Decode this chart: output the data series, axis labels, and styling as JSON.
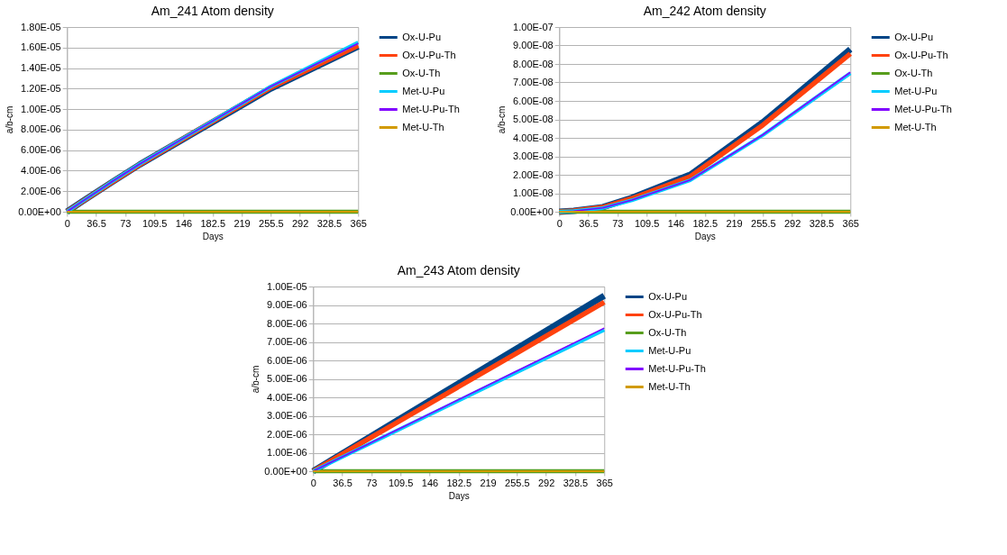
{
  "chart_data": [
    {
      "type": "line",
      "title": "Am_241 Atom density",
      "xlabel": "Days",
      "ylabel": "a/b-cm",
      "x": [
        0,
        18.25,
        54.75,
        91.25,
        164.25,
        255.5,
        365
      ],
      "xlim": [
        0,
        365
      ],
      "xticks": [
        0,
        36.5,
        73,
        109.5,
        146,
        182.5,
        219,
        255.5,
        292,
        328.5,
        365
      ],
      "ylim": [
        0,
        1.8e-05
      ],
      "yticks": [
        {
          "value": 0,
          "label": "0.00E+00"
        },
        {
          "value": 2e-06,
          "label": "2.00E-06"
        },
        {
          "value": 4e-06,
          "label": "4.00E-06"
        },
        {
          "value": 6e-06,
          "label": "6.00E-06"
        },
        {
          "value": 8e-06,
          "label": "8.00E-06"
        },
        {
          "value": 1e-05,
          "label": "1.00E-05"
        },
        {
          "value": 1.2e-05,
          "label": "1.20E-05"
        },
        {
          "value": 1.4e-05,
          "label": "1.40E-05"
        },
        {
          "value": 1.6e-05,
          "label": "1.60E-05"
        },
        {
          "value": 1.8e-05,
          "label": "1.80E-05"
        }
      ],
      "grid": "y",
      "legend": "right",
      "line_style": "solid",
      "marker": "none",
      "series": [
        {
          "name": "Ox-U-Pu",
          "color": "#004586",
          "values": [
            0,
            9.5e-07,
            2.8e-06,
            4.6e-06,
            7.9e-06,
            1.2e-05,
            1.61e-05
          ]
        },
        {
          "name": "Ox-U-Pu-Th",
          "color": "#ff420e",
          "values": [
            0,
            9.5e-07,
            2.8e-06,
            4.6e-06,
            7.95e-06,
            1.21e-05,
            1.62e-05
          ]
        },
        {
          "name": "Ox-U-Th",
          "color": "#579d1c",
          "values": [
            0,
            0,
            0,
            0,
            0,
            0,
            0
          ]
        },
        {
          "name": "Met-U-Pu",
          "color": "#00ccff",
          "values": [
            0,
            9.6e-07,
            2.85e-06,
            4.65e-06,
            8e-06,
            1.22e-05,
            1.65e-05
          ]
        },
        {
          "name": "Met-U-Pu-Th",
          "color": "#8000ff",
          "values": [
            0,
            9.6e-07,
            2.85e-06,
            4.65e-06,
            8e-06,
            1.22e-05,
            1.64e-05
          ]
        },
        {
          "name": "Met-U-Th",
          "color": "#d19a00",
          "values": [
            0,
            0,
            0,
            0,
            0,
            0,
            0
          ]
        }
      ]
    },
    {
      "type": "line",
      "title": "Am_242 Atom density",
      "xlabel": "Days",
      "ylabel": "a/b-cm",
      "x": [
        0,
        18.25,
        54.75,
        91.25,
        164.25,
        255.5,
        365
      ],
      "xlim": [
        0,
        365
      ],
      "xticks": [
        0,
        36.5,
        73,
        109.5,
        146,
        182.5,
        219,
        255.5,
        292,
        328.5,
        365
      ],
      "ylim": [
        0,
        1e-07
      ],
      "yticks": [
        {
          "value": 0,
          "label": "0.00E+00"
        },
        {
          "value": 1e-08,
          "label": "1.00E-08"
        },
        {
          "value": 2e-08,
          "label": "2.00E-08"
        },
        {
          "value": 3e-08,
          "label": "3.00E-08"
        },
        {
          "value": 4e-08,
          "label": "4.00E-08"
        },
        {
          "value": 5e-08,
          "label": "5.00E-08"
        },
        {
          "value": 6e-08,
          "label": "6.00E-08"
        },
        {
          "value": 7e-08,
          "label": "7.00E-08"
        },
        {
          "value": 8e-08,
          "label": "8.00E-08"
        },
        {
          "value": 9e-08,
          "label": "9.00E-08"
        },
        {
          "value": 1e-07,
          "label": "1.00E-07"
        }
      ],
      "grid": "y",
      "legend": "right",
      "line_style": "solid",
      "marker": "none",
      "series": [
        {
          "name": "Ox-U-Pu",
          "color": "#004586",
          "values": [
            0,
            5e-10,
            2.5e-09,
            7.5e-09,
            2e-08,
            4.85e-08,
            8.8e-08
          ]
        },
        {
          "name": "Ox-U-Pu-Th",
          "color": "#ff420e",
          "values": [
            0,
            5e-10,
            2.4e-09,
            7.2e-09,
            1.9e-08,
            4.7e-08,
            8.55e-08
          ]
        },
        {
          "name": "Ox-U-Th",
          "color": "#579d1c",
          "values": [
            0,
            0,
            0,
            0,
            0,
            0,
            0
          ]
        },
        {
          "name": "Met-U-Pu",
          "color": "#00ccff",
          "values": [
            0,
            4e-10,
            2e-09,
            6.2e-09,
            1.7e-08,
            4.15e-08,
            7.5e-08
          ]
        },
        {
          "name": "Met-U-Pu-Th",
          "color": "#8000ff",
          "values": [
            0,
            4e-10,
            2.1e-09,
            6.3e-09,
            1.72e-08,
            4.17e-08,
            7.55e-08
          ]
        },
        {
          "name": "Met-U-Th",
          "color": "#d19a00",
          "values": [
            0,
            0,
            0,
            0,
            0,
            0,
            0
          ]
        }
      ]
    },
    {
      "type": "line",
      "title": "Am_243 Atom density",
      "xlabel": "Days",
      "ylabel": "a/b-cm",
      "x": [
        0,
        18.25,
        54.75,
        91.25,
        164.25,
        255.5,
        365
      ],
      "xlim": [
        0,
        365
      ],
      "xticks": [
        0,
        36.5,
        73,
        109.5,
        146,
        182.5,
        219,
        255.5,
        292,
        328.5,
        365
      ],
      "ylim": [
        0,
        1e-05
      ],
      "yticks": [
        {
          "value": 0,
          "label": "0.00E+00"
        },
        {
          "value": 1e-06,
          "label": "1.00E-06"
        },
        {
          "value": 2e-06,
          "label": "2.00E-06"
        },
        {
          "value": 3e-06,
          "label": "3.00E-06"
        },
        {
          "value": 4e-06,
          "label": "4.00E-06"
        },
        {
          "value": 5e-06,
          "label": "5.00E-06"
        },
        {
          "value": 6e-06,
          "label": "6.00E-06"
        },
        {
          "value": 7e-06,
          "label": "7.00E-06"
        },
        {
          "value": 8e-06,
          "label": "8.00E-06"
        },
        {
          "value": 9e-06,
          "label": "9.00E-06"
        },
        {
          "value": 1e-05,
          "label": "1.00E-05"
        }
      ],
      "grid": "y",
      "legend": "right",
      "line_style": "solid",
      "marker": "none",
      "series": [
        {
          "name": "Ox-U-Pu",
          "color": "#004586",
          "values": [
            0,
            4.8e-07,
            1.43e-06,
            2.38e-06,
            4.28e-06,
            6.65e-06,
            9.5e-06
          ]
        },
        {
          "name": "Ox-U-Pu-Th",
          "color": "#ff420e",
          "values": [
            0,
            4.6e-07,
            1.38e-06,
            2.29e-06,
            4.12e-06,
            6.4e-06,
            9.15e-06
          ]
        },
        {
          "name": "Ox-U-Th",
          "color": "#579d1c",
          "values": [
            0,
            0,
            0,
            0,
            0,
            0,
            0
          ]
        },
        {
          "name": "Met-U-Pu",
          "color": "#00ccff",
          "values": [
            0,
            3.8e-07,
            1.15e-06,
            1.91e-06,
            3.44e-06,
            5.36e-06,
            7.65e-06
          ]
        },
        {
          "name": "Met-U-Pu-Th",
          "color": "#8000ff",
          "values": [
            0,
            3.9e-07,
            1.16e-06,
            1.94e-06,
            3.49e-06,
            5.43e-06,
            7.75e-06
          ]
        },
        {
          "name": "Met-U-Th",
          "color": "#d19a00",
          "values": [
            0,
            0,
            0,
            0,
            0,
            0,
            0
          ]
        }
      ]
    }
  ]
}
